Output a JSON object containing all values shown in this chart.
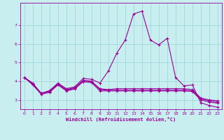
{
  "xlabel": "Windchill (Refroidissement éolien,°C)",
  "xlim": [
    -0.5,
    23.5
  ],
  "ylim": [
    2.5,
    8.2
  ],
  "yticks": [
    3,
    4,
    5,
    6,
    7
  ],
  "xticks": [
    0,
    1,
    2,
    3,
    4,
    5,
    6,
    7,
    8,
    9,
    10,
    11,
    12,
    13,
    14,
    15,
    16,
    17,
    18,
    19,
    20,
    21,
    22,
    23
  ],
  "background_color": "#c8eef0",
  "grid_color": "#a0d8dc",
  "line_color": "#990099",
  "lines": [
    [
      4.2,
      3.9,
      3.35,
      3.5,
      3.9,
      3.6,
      3.7,
      4.15,
      4.1,
      3.9,
      4.55,
      5.5,
      6.2,
      7.6,
      7.75,
      6.2,
      5.95,
      6.3,
      4.2,
      3.75,
      3.8,
      2.85,
      2.7,
      2.6
    ],
    [
      4.2,
      3.85,
      3.35,
      3.45,
      3.85,
      3.55,
      3.65,
      4.05,
      4.0,
      3.6,
      3.55,
      3.6,
      3.6,
      3.6,
      3.6,
      3.6,
      3.6,
      3.6,
      3.6,
      3.6,
      3.55,
      3.1,
      3.0,
      2.95
    ],
    [
      4.2,
      3.85,
      3.35,
      3.45,
      3.85,
      3.52,
      3.62,
      4.02,
      3.98,
      3.55,
      3.52,
      3.52,
      3.52,
      3.52,
      3.52,
      3.52,
      3.52,
      3.52,
      3.52,
      3.52,
      3.5,
      3.05,
      2.95,
      2.88
    ],
    [
      4.2,
      3.8,
      3.3,
      3.4,
      3.8,
      3.48,
      3.58,
      3.98,
      3.92,
      3.48,
      3.48,
      3.48,
      3.48,
      3.48,
      3.48,
      3.48,
      3.48,
      3.48,
      3.48,
      3.48,
      3.45,
      3.0,
      2.88,
      2.82
    ]
  ]
}
